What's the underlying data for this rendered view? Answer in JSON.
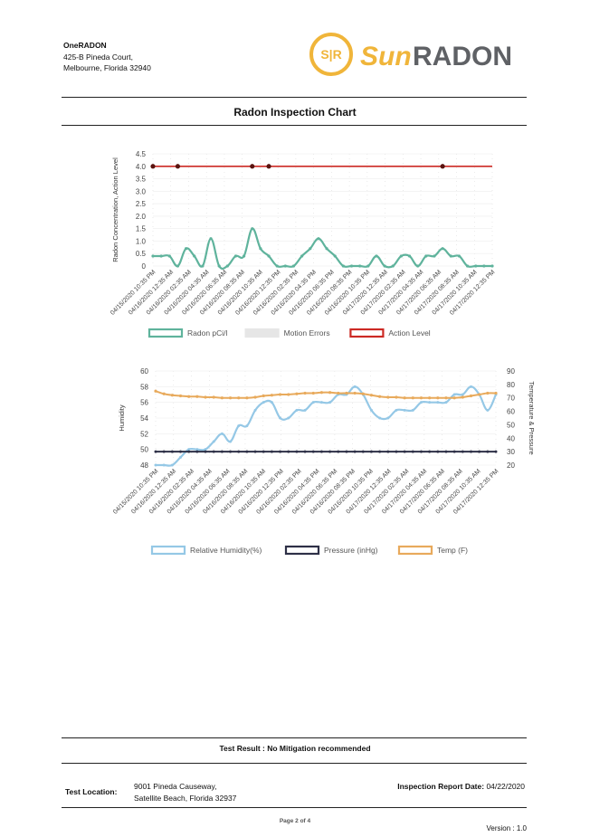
{
  "header": {
    "company_name": "OneRADON",
    "address_line1": "425-B Pineda Court,",
    "address_line2": "Melbourne, Florida 32940",
    "logo_mark": "S|R",
    "logo_word_a": "Sun",
    "logo_word_b": "RADON"
  },
  "page_title": "Radon Inspection Chart",
  "colors": {
    "radon": "#5fb39c",
    "action": "#cc2a24",
    "action_marker": "#5a1410",
    "motion": "#e6e6e6",
    "humidity": "#95c8e6",
    "pressure": "#2e3047",
    "temp": "#e8aa5c",
    "logo_gold": "#f0b53a",
    "logo_gray": "#5f6165"
  },
  "chart_data": [
    {
      "type": "line",
      "ylabel": "Radon Concentration, Action Level",
      "ylim": [
        0,
        4.5
      ],
      "yticks": [
        "0",
        "0.5",
        "1.0",
        "1.5",
        "2.0",
        "2.5",
        "3.0",
        "3.5",
        "4.0",
        "4.5"
      ],
      "xticks": [
        "04/15/2020 10:35 PM",
        "04/16/2020 12:35 AM",
        "04/16/2020 02:35 AM",
        "04/16/2020 04:35 AM",
        "04/16/2020 06:35 AM",
        "04/16/2020 08:35 AM",
        "04/16/2020 10:35 AM",
        "04/16/2020 12:35 PM",
        "04/16/2020 02:35 PM",
        "04/16/2020 04:35 PM",
        "04/16/2020 06:35 PM",
        "04/16/2020 08:35 PM",
        "04/16/2020 10:35 PM",
        "04/17/2020 12:35 AM",
        "04/17/2020 02:35 AM",
        "04/17/2020 04:35 AM",
        "04/17/2020 06:35 AM",
        "04/17/2020 08:35 AM",
        "04/17/2020 10:35 AM",
        "04/17/2020 12:35 PM"
      ],
      "grid": true,
      "legend_position": "bottom",
      "series": [
        {
          "name": "Radon pCi/l",
          "axis": "left",
          "values": [
            0.4,
            0.4,
            0.4,
            0,
            0.7,
            0.4,
            0,
            1.1,
            0,
            0,
            0.4,
            0.4,
            1.5,
            0.7,
            0.4,
            0,
            0,
            0,
            0.4,
            0.7,
            1.1,
            0.7,
            0.4,
            0,
            0,
            0,
            0,
            0.4,
            0,
            0,
            0.4,
            0.4,
            0,
            0.4,
            0.4,
            0.7,
            0.4,
            0.4,
            0,
            0,
            0,
            0
          ]
        },
        {
          "name": "Motion Errors",
          "axis": "left",
          "values": []
        },
        {
          "name": "Action Level",
          "axis": "left",
          "values": [
            4,
            4,
            4,
            4,
            4,
            4,
            4,
            4,
            4,
            4,
            4,
            4,
            4,
            4,
            4,
            4,
            4,
            4,
            4,
            4,
            4,
            4,
            4,
            4,
            4,
            4,
            4,
            4,
            4,
            4,
            4,
            4,
            4,
            4,
            4,
            4,
            4,
            4,
            4,
            4,
            4,
            4
          ]
        }
      ]
    },
    {
      "type": "line",
      "ylabel": "Humidity",
      "y2label": "Temperature & Pressure",
      "ylim": [
        48,
        60
      ],
      "y2lim": [
        20,
        90
      ],
      "yticks": [
        "48",
        "50",
        "52",
        "54",
        "56",
        "58",
        "60"
      ],
      "y2ticks": [
        "20",
        "30",
        "40",
        "50",
        "60",
        "70",
        "80",
        "90"
      ],
      "xticks": [
        "04/15/2020 10:35 PM",
        "04/16/2020 12:35 AM",
        "04/16/2020 02:35 AM",
        "04/16/2020 04:35 AM",
        "04/16/2020 06:35 AM",
        "04/16/2020 08:35 AM",
        "04/16/2020 10:35 AM",
        "04/16/2020 12:35 PM",
        "04/16/2020 02:35 PM",
        "04/16/2020 04:35 PM",
        "04/16/2020 06:35 PM",
        "04/16/2020 08:35 PM",
        "04/16/2020 10:35 PM",
        "04/17/2020 12:35 AM",
        "04/17/2020 02:35 AM",
        "04/17/2020 04:35 AM",
        "04/17/2020 06:35 AM",
        "04/17/2020 08:35 AM",
        "04/17/2020 10:35 AM",
        "04/17/2020 12:35 PM"
      ],
      "grid": true,
      "legend_position": "bottom",
      "series": [
        {
          "name": "Relative Humidity(%)",
          "axis": "left",
          "values": [
            48,
            48,
            48,
            49,
            50,
            50,
            50,
            51,
            52,
            51,
            53,
            53,
            55,
            56,
            56,
            54,
            54,
            55,
            55,
            56,
            56,
            56,
            57,
            57,
            58,
            57,
            55,
            54,
            54,
            55,
            55,
            55,
            56,
            56,
            56,
            56,
            57,
            57,
            58,
            57,
            55,
            57
          ]
        },
        {
          "name": "Pressure (inHg)",
          "axis": "right",
          "values": [
            30,
            30,
            30,
            30,
            30,
            30,
            30,
            30,
            30,
            30,
            30,
            30,
            30,
            30,
            30,
            30,
            30,
            30,
            30,
            30,
            30,
            30,
            30,
            30,
            30,
            30,
            30,
            30,
            30,
            30,
            30,
            30,
            30,
            30,
            30,
            30,
            30,
            30,
            30,
            30,
            30,
            30
          ]
        },
        {
          "name": "Temp (F)",
          "axis": "right",
          "values": [
            75,
            73,
            72,
            71.5,
            71,
            71,
            70.5,
            70.5,
            70,
            70,
            70,
            70,
            70.5,
            71.5,
            72,
            72.5,
            72.5,
            73,
            73.5,
            73.5,
            74,
            74,
            73.5,
            73.5,
            73.5,
            73,
            72,
            71,
            70.5,
            70.5,
            70,
            70,
            70,
            70,
            70,
            70,
            70,
            70.5,
            71.5,
            72.5,
            73.5,
            73.5
          ]
        }
      ]
    }
  ],
  "footer": {
    "test_result": "Test Result : No Mitigation recommended",
    "location_label": "Test Location:",
    "location_line1": "9001 Pineda Causeway,",
    "location_line2": "Satellite Beach, Florida 32937",
    "report_date_label": "Inspection Report Date:",
    "report_date_value": "04/22/2020",
    "page_indicator": "Page 2 of 4",
    "version": "Version : 1.0"
  }
}
